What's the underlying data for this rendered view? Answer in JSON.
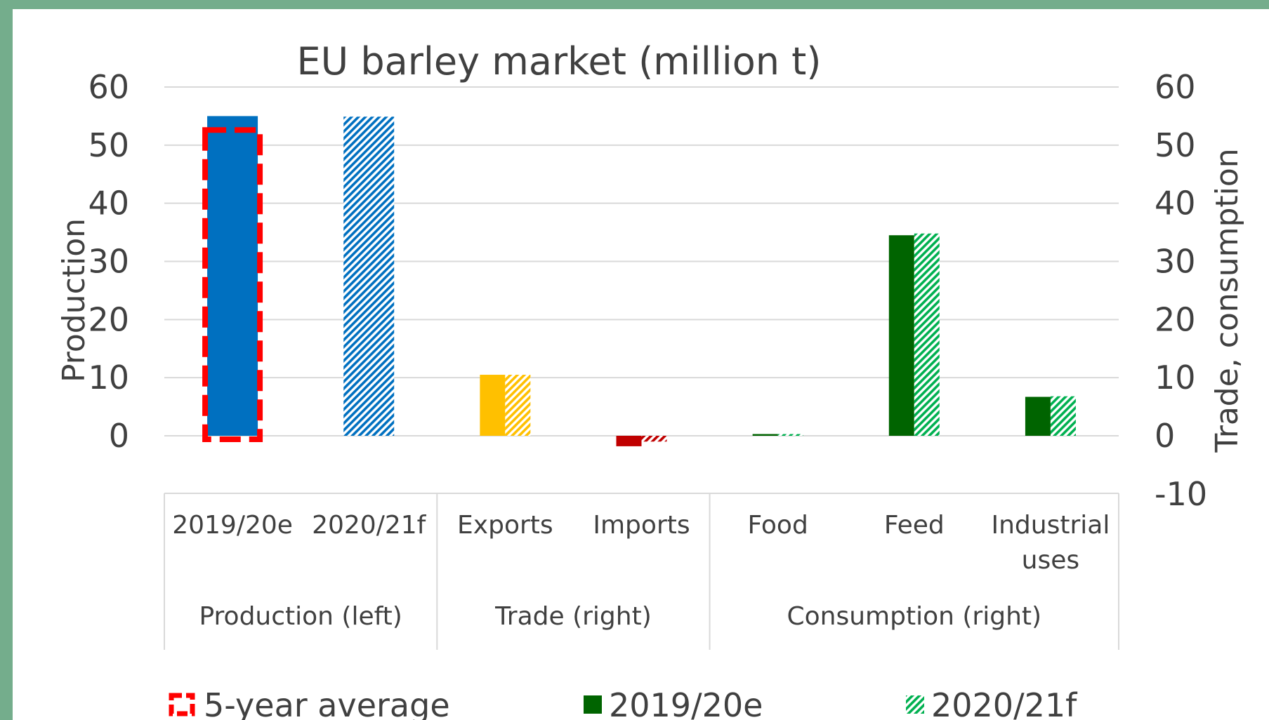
{
  "chart_data": {
    "type": "bar",
    "title": "EU barley market (million t)",
    "left_axis": {
      "label": "Production",
      "min": 0,
      "max": 60,
      "ticks": [
        0,
        10,
        20,
        30,
        40,
        50,
        60
      ]
    },
    "right_axis": {
      "label": "Trade, consumption",
      "min": -10,
      "max": 60,
      "ticks": [
        -10,
        0,
        10,
        20,
        30,
        40,
        50,
        60
      ]
    },
    "grid": true,
    "legend_position": "bottom",
    "groups": [
      {
        "name": "Production (left)",
        "axis": "left",
        "categories": [
          "2019/20e",
          "2020/21f"
        ]
      },
      {
        "name": "Trade (right)",
        "axis": "right",
        "categories": [
          "Exports",
          "Imports"
        ]
      },
      {
        "name": "Consumption (right)",
        "axis": "right",
        "categories": [
          "Food",
          "Feed",
          "Industrial uses"
        ]
      }
    ],
    "categories": [
      "2019/20e",
      "2020/21f",
      "Exports",
      "Imports",
      "Food",
      "Feed",
      "Industrial uses"
    ],
    "series": [
      {
        "name": "2019/20e",
        "style": "solid",
        "values": [
          55.0,
          null,
          10.5,
          -1.8,
          0.3,
          34.5,
          6.7
        ]
      },
      {
        "name": "2020/21f",
        "style": "hatched",
        "values": [
          null,
          54.9,
          10.5,
          -1.0,
          0.3,
          34.8,
          6.8
        ]
      },
      {
        "name": "5-year average",
        "style": "dashed-outline",
        "values": [
          52.6,
          null,
          null,
          null,
          null,
          null,
          null
        ]
      }
    ],
    "colors": {
      "production": "#0070c0",
      "exports": "#ffc000",
      "imports": "#c00000",
      "consumption": "#006400",
      "consumption_hatch": "#00b050",
      "five_year_average": "#ff0000"
    }
  },
  "legend": {
    "items": [
      {
        "label": "5-year average"
      },
      {
        "label": "2019/20e"
      },
      {
        "label": "2020/21f"
      }
    ]
  }
}
